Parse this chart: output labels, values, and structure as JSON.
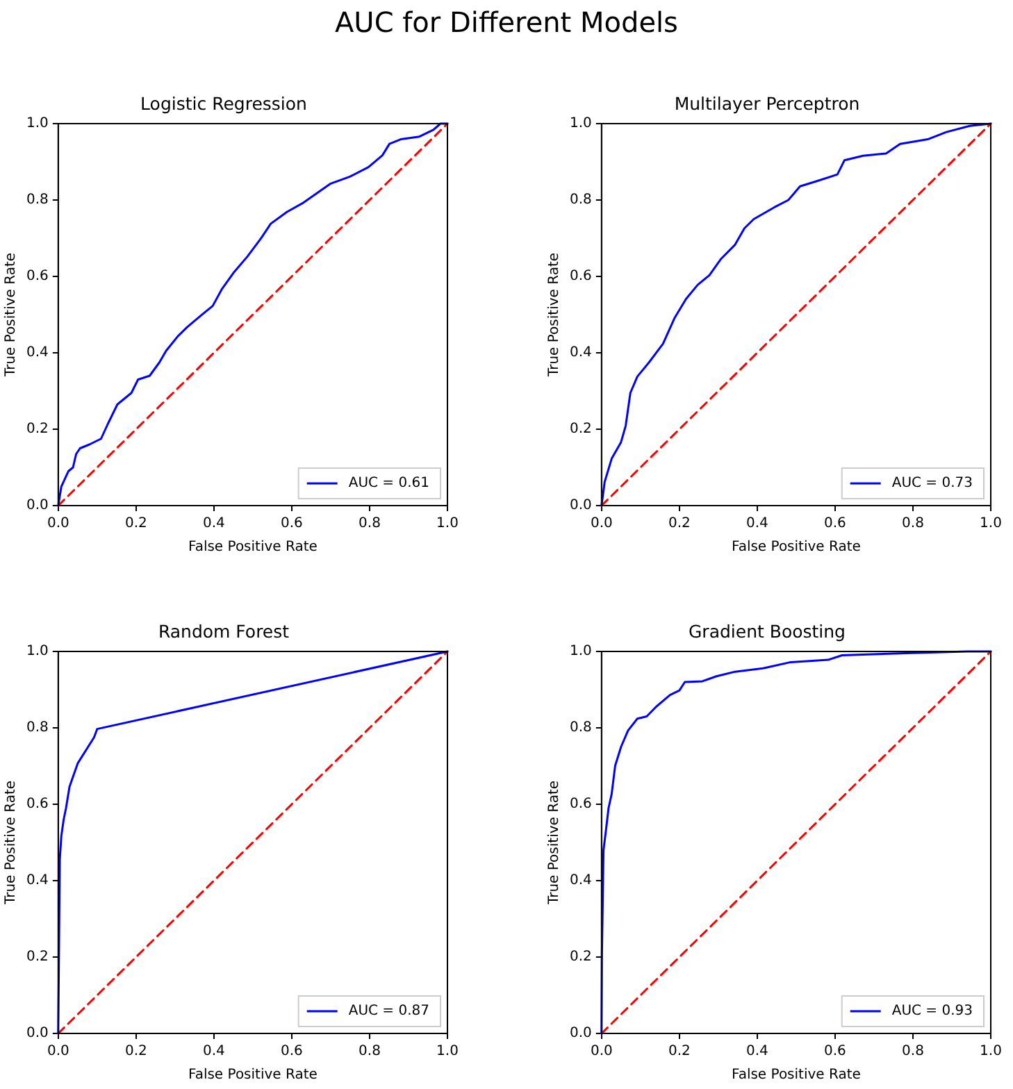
{
  "chart_data": [
    {
      "type": "line",
      "title": "Logistic Regression",
      "xlabel": "False Positive Rate",
      "ylabel": "True Positive Rate",
      "annotations": [
        "AUC for Different Models"
      ],
      "xlim": [
        0,
        1
      ],
      "ylim": [
        0,
        1
      ],
      "xticks": [
        {
          "value": 0,
          "label": "0.0"
        },
        {
          "value": 0.2,
          "label": "0.2"
        },
        {
          "value": 0.4,
          "label": "0.4"
        },
        {
          "value": 0.6,
          "label": "0.6"
        },
        {
          "value": 0.8,
          "label": "0.8"
        },
        {
          "value": 1,
          "label": "1.0"
        }
      ],
      "yticks": [
        {
          "value": 0,
          "label": "0.0"
        },
        {
          "value": 0.2,
          "label": "0.2"
        },
        {
          "value": 0.4,
          "label": "0.4"
        },
        {
          "value": 0.6,
          "label": "0.6"
        },
        {
          "value": 0.8,
          "label": "0.8"
        },
        {
          "value": 1,
          "label": "1.0"
        }
      ],
      "grid": false,
      "legend": "bottom right",
      "marker": "none",
      "series": [
        {
          "name": "AUC = 0.61",
          "color": "#0000ff",
          "line_style": "solid",
          "x": [
            0,
            0.008,
            0.026,
            0.038,
            0.046,
            0.056,
            0.08,
            0.11,
            0.128,
            0.152,
            0.188,
            0.205,
            0.235,
            0.26,
            0.277,
            0.307,
            0.331,
            0.367,
            0.397,
            0.42,
            0.45,
            0.486,
            0.522,
            0.546,
            0.588,
            0.63,
            0.665,
            0.7,
            0.749,
            0.797,
            0.833,
            0.851,
            0.88,
            0.928,
            0.964,
            0.982,
            1
          ],
          "values": [
            0,
            0.05,
            0.09,
            0.1,
            0.135,
            0.15,
            0.16,
            0.175,
            0.215,
            0.265,
            0.295,
            0.33,
            0.34,
            0.375,
            0.405,
            0.443,
            0.467,
            0.498,
            0.523,
            0.566,
            0.609,
            0.652,
            0.701,
            0.738,
            0.769,
            0.793,
            0.818,
            0.843,
            0.861,
            0.886,
            0.917,
            0.947,
            0.959,
            0.966,
            0.984,
            1,
            1
          ]
        },
        {
          "color": "#ff0000",
          "line_style": "dashed",
          "x": [
            0,
            1
          ],
          "values": [
            0,
            1
          ]
        }
      ]
    },
    {
      "type": "line",
      "title": "Multilayer Perceptron",
      "xlabel": "False Positive Rate",
      "ylabel": "True Positive Rate",
      "xlim": [
        0,
        1
      ],
      "ylim": [
        0,
        1
      ],
      "xticks": [
        {
          "value": 0,
          "label": "0.0"
        },
        {
          "value": 0.2,
          "label": "0.2"
        },
        {
          "value": 0.4,
          "label": "0.4"
        },
        {
          "value": 0.6,
          "label": "0.6"
        },
        {
          "value": 0.8,
          "label": "0.8"
        },
        {
          "value": 1,
          "label": "1.0"
        }
      ],
      "yticks": [
        {
          "value": 0,
          "label": "0.0"
        },
        {
          "value": 0.2,
          "label": "0.2"
        },
        {
          "value": 0.4,
          "label": "0.4"
        },
        {
          "value": 0.6,
          "label": "0.6"
        },
        {
          "value": 0.8,
          "label": "0.8"
        },
        {
          "value": 1,
          "label": "1.0"
        }
      ],
      "grid": false,
      "legend": "bottom right",
      "marker": "none",
      "series": [
        {
          "name": "AUC = 0.73",
          "color": "#0000ff",
          "line_style": "solid",
          "x": [
            0,
            0.008,
            0.026,
            0.05,
            0.062,
            0.074,
            0.092,
            0.122,
            0.158,
            0.188,
            0.217,
            0.247,
            0.277,
            0.307,
            0.343,
            0.367,
            0.391,
            0.444,
            0.48,
            0.51,
            0.552,
            0.606,
            0.624,
            0.672,
            0.731,
            0.767,
            0.838,
            0.886,
            0.946,
            1
          ],
          "values": [
            0,
            0.062,
            0.123,
            0.166,
            0.209,
            0.295,
            0.338,
            0.375,
            0.424,
            0.492,
            0.541,
            0.578,
            0.603,
            0.646,
            0.683,
            0.726,
            0.75,
            0.781,
            0.8,
            0.836,
            0.849,
            0.867,
            0.904,
            0.916,
            0.922,
            0.947,
            0.959,
            0.978,
            0.994,
            1
          ]
        },
        {
          "color": "#ff0000",
          "line_style": "dashed",
          "x": [
            0,
            1
          ],
          "values": [
            0,
            1
          ]
        }
      ]
    },
    {
      "type": "line",
      "title": "Random Forest",
      "xlabel": "False Positive Rate",
      "ylabel": "True Positive Rate",
      "xlim": [
        0,
        1
      ],
      "ylim": [
        0,
        1
      ],
      "xticks": [
        {
          "value": 0,
          "label": "0.0"
        },
        {
          "value": 0.2,
          "label": "0.2"
        },
        {
          "value": 0.4,
          "label": "0.4"
        },
        {
          "value": 0.6,
          "label": "0.6"
        },
        {
          "value": 0.8,
          "label": "0.8"
        },
        {
          "value": 1,
          "label": "1.0"
        }
      ],
      "yticks": [
        {
          "value": 0,
          "label": "0.0"
        },
        {
          "value": 0.2,
          "label": "0.2"
        },
        {
          "value": 0.4,
          "label": "0.4"
        },
        {
          "value": 0.6,
          "label": "0.6"
        },
        {
          "value": 0.8,
          "label": "0.8"
        },
        {
          "value": 1,
          "label": "1.0"
        }
      ],
      "grid": false,
      "legend": "bottom right",
      "marker": "none",
      "series": [
        {
          "name": "AUC = 0.87",
          "color": "#0000ff",
          "line_style": "solid",
          "x": [
            0,
            0.004,
            0.008,
            0.014,
            0.02,
            0.029,
            0.05,
            0.092,
            0.1,
            1
          ],
          "values": [
            0,
            0.455,
            0.517,
            0.56,
            0.59,
            0.646,
            0.707,
            0.775,
            0.797,
            1
          ]
        },
        {
          "color": "#ff0000",
          "line_style": "dashed",
          "x": [
            0,
            1
          ],
          "values": [
            0,
            1
          ]
        }
      ]
    },
    {
      "type": "line",
      "title": "Gradient Boosting",
      "xlabel": "False Positive Rate",
      "ylabel": "True Positive Rate",
      "xlim": [
        0,
        1
      ],
      "ylim": [
        0,
        1
      ],
      "xticks": [
        {
          "value": 0,
          "label": "0.0"
        },
        {
          "value": 0.2,
          "label": "0.2"
        },
        {
          "value": 0.4,
          "label": "0.4"
        },
        {
          "value": 0.6,
          "label": "0.6"
        },
        {
          "value": 0.8,
          "label": "0.8"
        },
        {
          "value": 1,
          "label": "1.0"
        }
      ],
      "yticks": [
        {
          "value": 0,
          "label": "0.0"
        },
        {
          "value": 0.2,
          "label": "0.2"
        },
        {
          "value": 0.4,
          "label": "0.4"
        },
        {
          "value": 0.6,
          "label": "0.6"
        },
        {
          "value": 0.8,
          "label": "0.8"
        },
        {
          "value": 1,
          "label": "1.0"
        }
      ],
      "grid": false,
      "legend": "bottom right",
      "marker": "none",
      "series": [
        {
          "name": "AUC = 0.93",
          "color": "#0000ff",
          "line_style": "solid",
          "x": [
            0,
            0.001,
            0.005,
            0.011,
            0.018,
            0.026,
            0.035,
            0.05,
            0.068,
            0.092,
            0.116,
            0.14,
            0.176,
            0.2,
            0.214,
            0.259,
            0.295,
            0.343,
            0.415,
            0.486,
            0.582,
            0.618,
            0.797,
            0.94,
            1
          ],
          "values": [
            0,
            0.209,
            0.48,
            0.529,
            0.59,
            0.627,
            0.701,
            0.75,
            0.793,
            0.824,
            0.83,
            0.855,
            0.886,
            0.898,
            0.92,
            0.922,
            0.935,
            0.947,
            0.956,
            0.972,
            0.978,
            0.99,
            0.996,
            1,
            1
          ]
        },
        {
          "color": "#ff0000",
          "line_style": "dashed",
          "x": [
            0,
            1
          ],
          "values": [
            0,
            1
          ]
        }
      ]
    }
  ]
}
